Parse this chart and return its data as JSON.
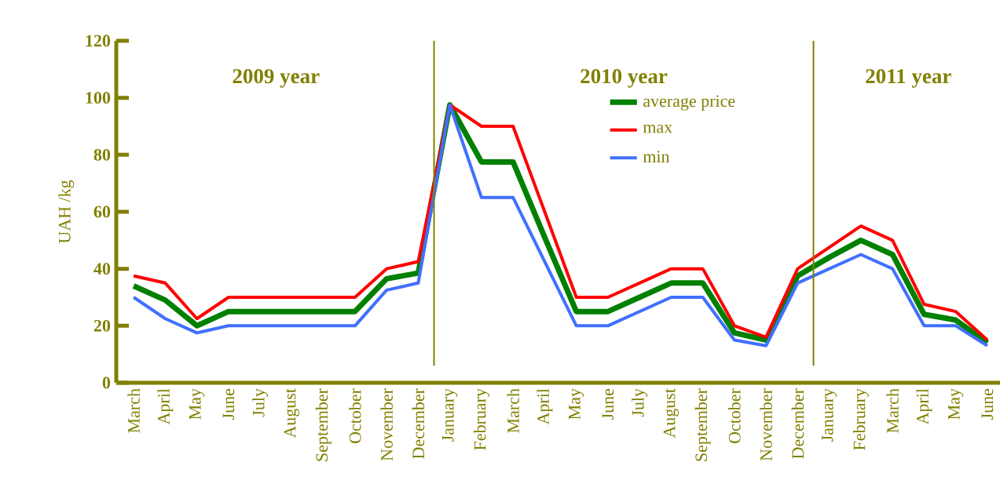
{
  "chart_data": {
    "type": "line",
    "ylabel": "UAH /kg",
    "categories": [
      "March",
      "April",
      "May",
      "June",
      "July",
      "August",
      "September",
      "October",
      "November",
      "December",
      "January",
      "February",
      "March",
      "April",
      "May",
      "June",
      "July",
      "August",
      "September",
      "October",
      "November",
      "December",
      "January",
      "February",
      "March",
      "April",
      "May",
      "June"
    ],
    "series": [
      {
        "name": "average price",
        "color": "#008000",
        "values": [
          34,
          29,
          20,
          25,
          25,
          25,
          25,
          25,
          36.5,
          38.5,
          97.5,
          77.5,
          77.5,
          51,
          25,
          25,
          30,
          35,
          35,
          17.5,
          15,
          37.5,
          44,
          50,
          45,
          24,
          22,
          14
        ]
      },
      {
        "name": "max",
        "color": "#ff0000",
        "values": [
          37.5,
          35,
          22.5,
          30,
          30,
          30,
          30,
          30,
          40,
          42.5,
          97.5,
          90,
          90,
          60,
          30,
          30,
          35,
          40,
          40,
          20,
          16,
          40,
          47.5,
          55,
          50,
          27.5,
          25,
          15
        ]
      },
      {
        "name": "min",
        "color": "#4070ff",
        "values": [
          30,
          22.5,
          17.5,
          20,
          20,
          20,
          20,
          20,
          32.5,
          35,
          97.5,
          65,
          65,
          42.5,
          20,
          20,
          25,
          30,
          30,
          15,
          13,
          35,
          40,
          45,
          40,
          20,
          20,
          13
        ]
      }
    ],
    "ylim": [
      0,
      120
    ],
    "yticks": [
      0,
      20,
      40,
      60,
      80,
      100,
      120
    ],
    "legend": "top",
    "annotations": [
      "2009 year",
      "2010 year",
      "2011 year"
    ]
  }
}
